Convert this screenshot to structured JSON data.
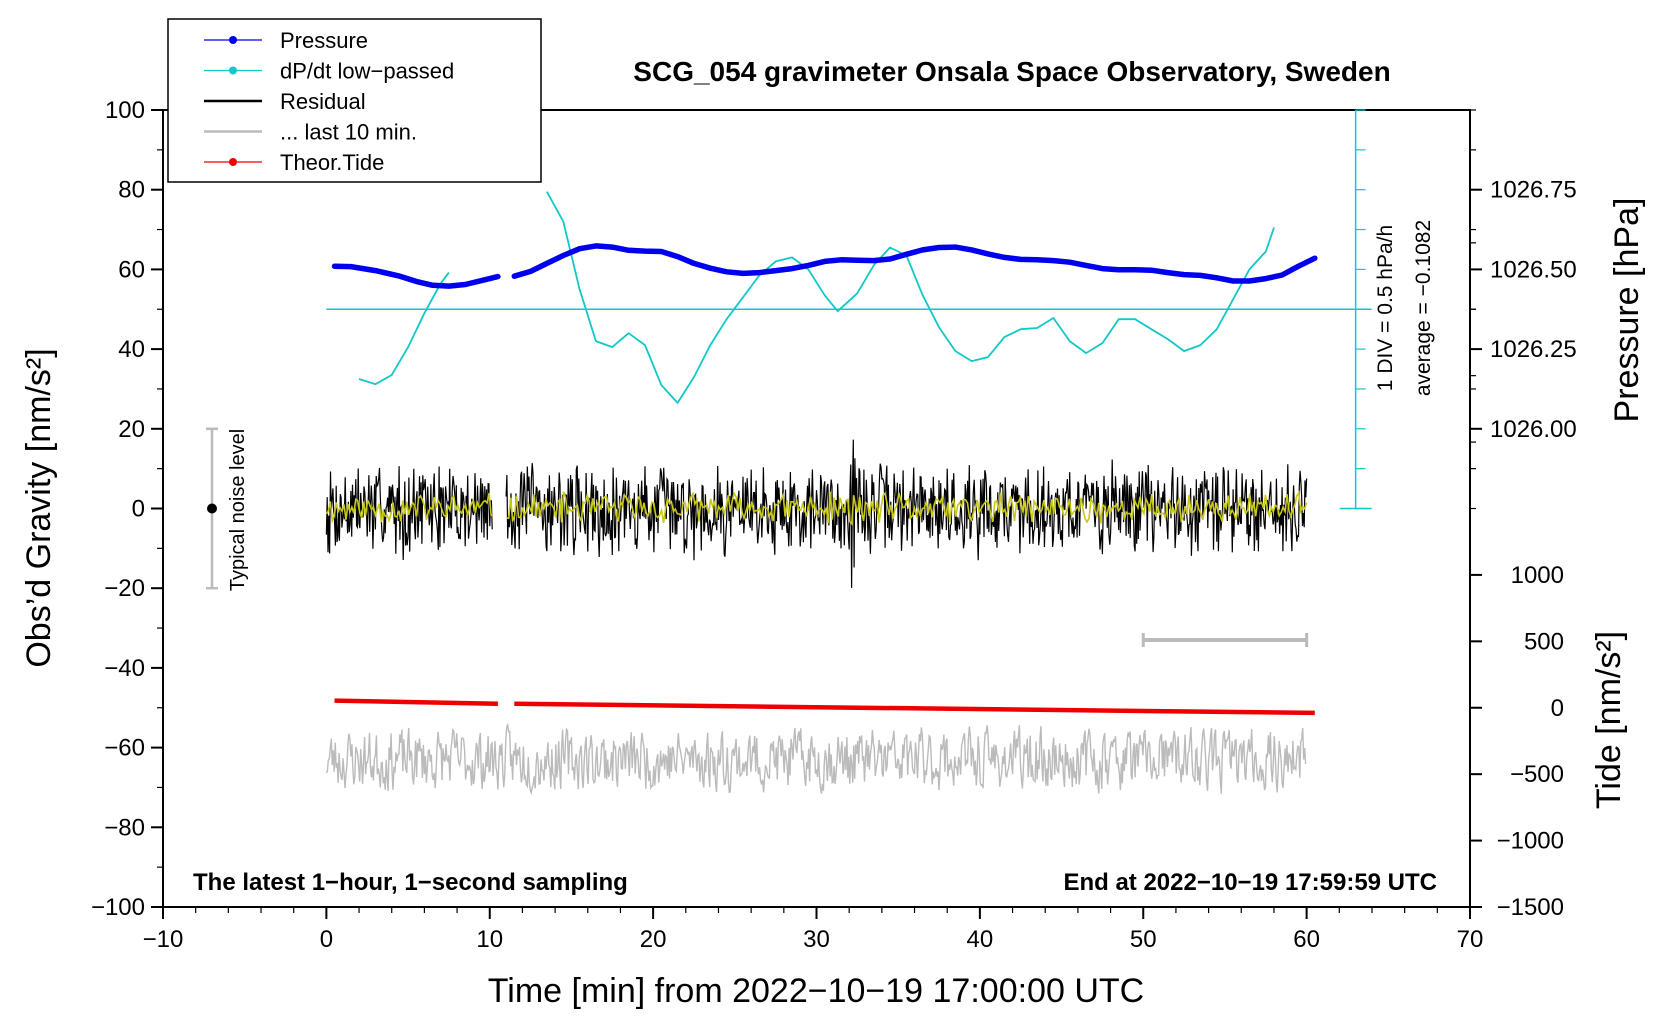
{
  "chart_data": {
    "type": "line",
    "title": "SCG_054 gravimeter Onsala Space Observatory, Sweden",
    "xlabel": "Time [min] from 2022−10−19 17:00:00 UTC",
    "ylabel_left": "Obs’d Gravity [nm/s²]",
    "ylabel_right_top": "Pressure [hPa]",
    "ylabel_right_bottom": "Tide [nm/s²]",
    "xlim": [
      -10,
      70
    ],
    "ylim_left": [
      -100,
      100
    ],
    "xticks": [
      -10,
      0,
      10,
      20,
      30,
      40,
      50,
      60,
      70
    ],
    "xtick_labels": [
      "−10",
      "0",
      "10",
      "20",
      "30",
      "40",
      "50",
      "60",
      "70"
    ],
    "yticks_left": [
      -100,
      -80,
      -60,
      -40,
      -20,
      0,
      20,
      40,
      60,
      80,
      100
    ],
    "ytick_labels_left": [
      "−100",
      "−80",
      "−60",
      "−40",
      "−20",
      "0",
      "20",
      "40",
      "60",
      "80",
      "100"
    ],
    "pressure_axis": {
      "ticks": [
        1026.0,
        1026.25,
        1026.5,
        1026.75
      ],
      "tick_labels": [
        "1026.00",
        "1026.25",
        "1026.50",
        "1026.75"
      ],
      "map_to_left": [
        20,
        40,
        60,
        80
      ]
    },
    "tide_axis": {
      "ticks": [
        -1500,
        -1000,
        -500,
        0,
        500,
        1000
      ],
      "tick_labels": [
        "−1500",
        "−1000",
        "−500",
        "0",
        "500",
        "1000"
      ],
      "map_to_left": [
        -100,
        -83.333,
        -66.667,
        -50,
        -33.333,
        -16.667
      ]
    },
    "legend": [
      {
        "label": "Pressure",
        "color": "#0000ee",
        "marker": true
      },
      {
        "label": "dP/dt low−passed",
        "color": "#11c8c8",
        "marker": true
      },
      {
        "label": "Residual",
        "color": "#000000",
        "marker": false
      },
      {
        "label": "... last 10 min.",
        "color": "#bbbbbb",
        "marker": false
      },
      {
        "label": "Theor.Tide",
        "color": "#ee0000",
        "marker": true
      }
    ],
    "annotations": {
      "left_bottom": "The latest 1−hour, 1−second sampling",
      "right_bottom": "End at 2022−10−19 17:59:59 UTC",
      "noise_label": "Typical noise level",
      "div_label": "1 DIV = 0.5 hPa/h",
      "avg_label": "average = −0.1082"
    },
    "noise_bar": {
      "x": -7,
      "center": 0,
      "low": -20,
      "high": 20
    },
    "last10_bar": {
      "x0": 50,
      "x1": 60,
      "y": -33
    },
    "dpdt_scale_bar": {
      "x": 63,
      "y0": 0,
      "y1": 100,
      "minor_step": 10
    },
    "dpdt_average_y": 50,
    "series": [
      {
        "name": "Pressure",
        "color": "#0000ee",
        "segments": [
          [
            [
              0.5,
              60.8
            ],
            [
              1.5,
              60.7
            ],
            [
              3,
              59.7
            ],
            [
              4.5,
              58.3
            ],
            [
              5.5,
              57.0
            ],
            [
              6.5,
              56.0
            ],
            [
              7.5,
              55.8
            ],
            [
              8.5,
              56.2
            ],
            [
              9.5,
              57.2
            ],
            [
              10.5,
              58.2
            ]
          ],
          [
            [
              11.5,
              58.3
            ],
            [
              12.5,
              59.5
            ],
            [
              13.5,
              61.5
            ],
            [
              14.5,
              63.5
            ],
            [
              15.5,
              65.2
            ],
            [
              16.5,
              65.9
            ],
            [
              17.5,
              65.6
            ],
            [
              18.5,
              64.8
            ],
            [
              19.5,
              64.6
            ],
            [
              20.5,
              64.5
            ],
            [
              21.5,
              63.2
            ],
            [
              22.5,
              61.5
            ],
            [
              23.5,
              60.3
            ],
            [
              24.5,
              59.4
            ],
            [
              25.5,
              59.0
            ],
            [
              26.5,
              59.2
            ],
            [
              27.5,
              59.7
            ],
            [
              28.5,
              60.2
            ],
            [
              29.5,
              61.0
            ],
            [
              30.5,
              62.0
            ],
            [
              31.5,
              62.4
            ],
            [
              32.5,
              62.3
            ],
            [
              33.5,
              62.2
            ],
            [
              34.5,
              62.6
            ],
            [
              35.5,
              63.8
            ],
            [
              36.5,
              64.9
            ],
            [
              37.5,
              65.5
            ],
            [
              38.5,
              65.6
            ],
            [
              39.5,
              64.9
            ],
            [
              40.5,
              63.9
            ],
            [
              41.5,
              63.0
            ],
            [
              42.5,
              62.5
            ],
            [
              43.5,
              62.4
            ],
            [
              44.5,
              62.2
            ],
            [
              45.5,
              61.8
            ],
            [
              46.5,
              61.0
            ],
            [
              47.5,
              60.2
            ],
            [
              48.5,
              59.9
            ],
            [
              49.5,
              59.9
            ],
            [
              50.5,
              59.8
            ],
            [
              51.5,
              59.2
            ],
            [
              52.5,
              58.7
            ],
            [
              53.5,
              58.5
            ],
            [
              54.5,
              57.9
            ],
            [
              55.5,
              57.1
            ],
            [
              56.5,
              57.1
            ],
            [
              57.5,
              57.7
            ],
            [
              58.5,
              58.6
            ],
            [
              59.5,
              60.8
            ],
            [
              60.5,
              62.8
            ]
          ]
        ]
      },
      {
        "name": "dP/dt low−passed",
        "color": "#11c8c8",
        "segments": [
          [
            [
              2,
              32.5
            ],
            [
              3,
              31.2
            ],
            [
              4,
              33.5
            ],
            [
              5,
              40.5
            ],
            [
              6,
              49.0
            ],
            [
              7,
              56.5
            ],
            [
              7.5,
              59.2
            ]
          ],
          [
            [
              13.5,
              79.5
            ],
            [
              14.5,
              72.0
            ],
            [
              15.5,
              55.0
            ],
            [
              16.5,
              42.0
            ],
            [
              17.5,
              40.5
            ],
            [
              18.5,
              44.0
            ],
            [
              19.5,
              41.0
            ],
            [
              20.5,
              31.0
            ],
            [
              21.5,
              26.5
            ],
            [
              22.5,
              33.0
            ],
            [
              23.5,
              41.0
            ],
            [
              24.5,
              47.5
            ],
            [
              25.5,
              53.0
            ],
            [
              26.5,
              58.5
            ],
            [
              27.5,
              62.0
            ],
            [
              28.5,
              63.0
            ],
            [
              29.5,
              60.0
            ],
            [
              30.5,
              53.5
            ],
            [
              31.3,
              49.5
            ],
            [
              32.5,
              54.0
            ],
            [
              33.5,
              61.0
            ],
            [
              34.5,
              65.5
            ],
            [
              35.5,
              63.5
            ],
            [
              36.5,
              53.5
            ],
            [
              37.5,
              45.5
            ],
            [
              38.5,
              39.5
            ],
            [
              39.5,
              37.0
            ],
            [
              40.5,
              38.0
            ],
            [
              41.5,
              43.0
            ],
            [
              42.5,
              45.0
            ],
            [
              43.5,
              45.3
            ],
            [
              44.5,
              47.8
            ],
            [
              45.5,
              42.0
            ],
            [
              46.5,
              39.0
            ],
            [
              47.5,
              41.5
            ],
            [
              48.5,
              47.5
            ],
            [
              49.5,
              47.5
            ],
            [
              50.5,
              45.0
            ],
            [
              51.5,
              42.5
            ],
            [
              52.5,
              39.5
            ],
            [
              53.5,
              41.0
            ],
            [
              54.5,
              45.0
            ],
            [
              55.5,
              52.5
            ],
            [
              56.5,
              60.0
            ],
            [
              57.5,
              64.5
            ],
            [
              58,
              70.5
            ]
          ]
        ]
      },
      {
        "name": "Residual",
        "color": "#000000",
        "x_range": [
          0,
          60
        ],
        "gap": [
          10.2,
          11.0
        ],
        "amplitude": 12,
        "seed": 7
      },
      {
        "name": "Residual smoothed",
        "color": "#c8c819",
        "x_range": [
          0,
          60
        ],
        "gap": [
          10.2,
          11.0
        ],
        "amplitude": 4,
        "seed": 11
      },
      {
        "name": "Theor.Tide",
        "color": "#ee0000",
        "segments": [
          [
            [
              0.5,
              -48.2
            ],
            [
              10.5,
              -49.0
            ]
          ],
          [
            [
              11.5,
              -49.0
            ],
            [
              60.5,
              -51.3
            ]
          ]
        ]
      },
      {
        "name": "... last 10 min.",
        "color": "#bbbbbb",
        "x_range": [
          0,
          60
        ],
        "center": -63,
        "amplitude": 6,
        "seed": 23
      }
    ]
  }
}
